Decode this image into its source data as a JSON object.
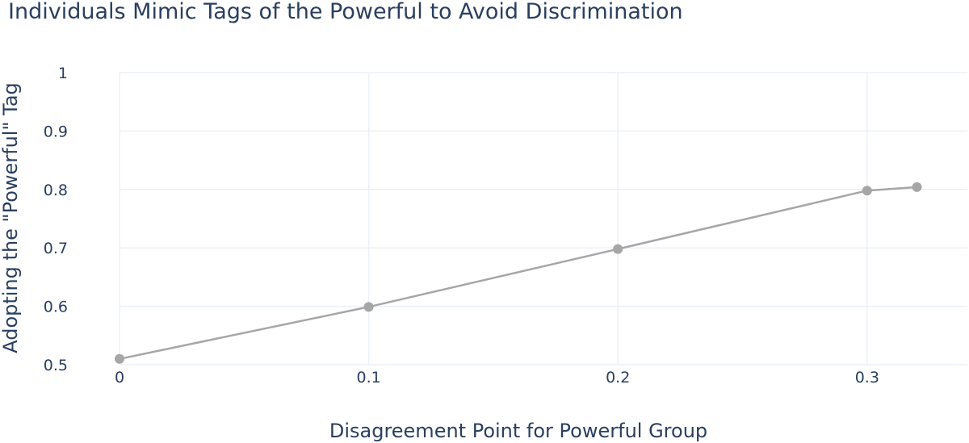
{
  "chart_data": {
    "type": "line",
    "title": "Individuals Mimic Tags of the Powerful to Avoid Discrimination",
    "xlabel": "Disagreement Point for Powerful Group",
    "ylabel": "Adopting the \"Powerful\" Tag",
    "xlim": [
      0,
      0.34
    ],
    "ylim": [
      0.5,
      1
    ],
    "x_ticks": [
      0,
      0.1,
      0.2,
      0.3
    ],
    "x_tick_labels": [
      "0",
      "0.1",
      "0.2",
      "0.3"
    ],
    "y_ticks": [
      0.5,
      0.6,
      0.7,
      0.8,
      0.9,
      1
    ],
    "y_tick_labels": [
      "0.5",
      "0.6",
      "0.7",
      "0.8",
      "0.9",
      "1"
    ],
    "grid": true,
    "legend": false,
    "series": [
      {
        "color": "#a6a6a6",
        "marker": "circle",
        "x": [
          0,
          0.1,
          0.2,
          0.3,
          0.32
        ],
        "y": [
          0.51,
          0.599,
          0.698,
          0.798,
          0.804
        ]
      }
    ]
  }
}
